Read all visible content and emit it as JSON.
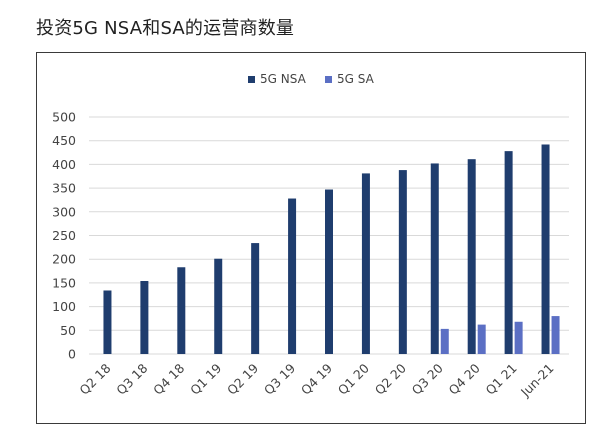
{
  "title": "投资5G NSA和SA的运营商数量",
  "colors": {
    "nsa": "#1f3d6e",
    "sa": "#5b6fc4",
    "grid": "#d9d9d9",
    "text": "#444444"
  },
  "chart_data": {
    "type": "bar",
    "title": "投资5G NSA和SA的运营商数量",
    "xlabel": "",
    "ylabel": "",
    "categories": [
      "Q2 18",
      "Q3 18",
      "Q4 18",
      "Q1 19",
      "Q2 19",
      "Q3 19",
      "Q4 19",
      "Q1 20",
      "Q2 20",
      "Q3 20",
      "Q4 20",
      "Q1 21",
      "Jun-21"
    ],
    "series": [
      {
        "name": "5G NSA",
        "values": [
          134,
          154,
          183,
          201,
          234,
          328,
          347,
          381,
          388,
          402,
          411,
          428,
          442
        ]
      },
      {
        "name": "5G SA",
        "values": [
          null,
          null,
          null,
          null,
          null,
          null,
          null,
          null,
          null,
          53,
          62,
          68,
          80
        ]
      }
    ],
    "ylim": [
      0,
      500
    ],
    "yticks": [
      0,
      50,
      100,
      150,
      200,
      250,
      300,
      350,
      400,
      450,
      500
    ],
    "grid": true,
    "legend_position": "top-center"
  }
}
